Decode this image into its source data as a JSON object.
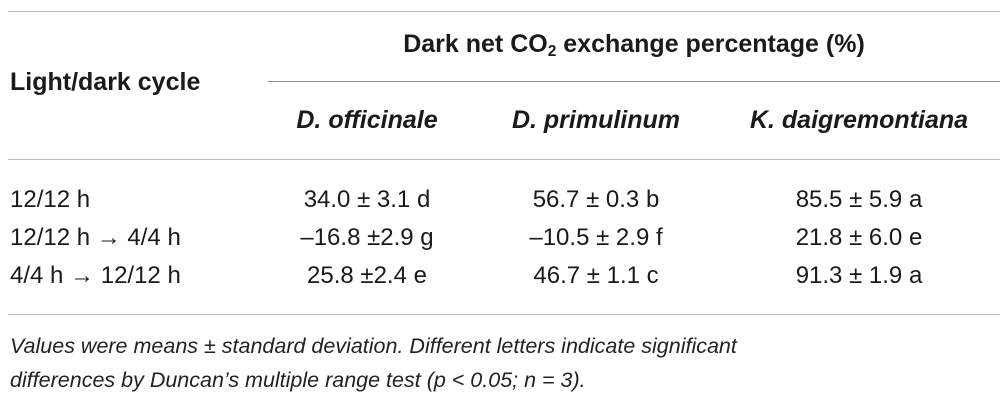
{
  "table": {
    "row_header": "Light/dark cycle",
    "group_header_prefix": "Dark net CO",
    "group_header_sub": "2",
    "group_header_suffix": " exchange percentage (%)",
    "columns": [
      "D. officinale",
      "D. primulinum",
      "K. daigremontiana"
    ],
    "rows": [
      {
        "cycle": "12/12 h",
        "values": [
          "34.0 ± 3.1 d",
          "56.7 ± 0.3 b",
          "85.5 ± 5.9 a"
        ]
      },
      {
        "cycle": "12/12 h → 4/4 h",
        "values": [
          "–16.8 ±2.9 g",
          "–10.5 ± 2.9 f",
          "21.8 ± 6.0 e"
        ]
      },
      {
        "cycle": "4/4 h → 12/12 h",
        "values": [
          "25.8 ±2.4 e",
          "46.7 ± 1.1 c",
          "91.3 ± 1.9 a"
        ]
      }
    ]
  },
  "footnote": {
    "line1": "Values were means ± standard deviation. Different letters indicate significant",
    "line2": "differences by Duncan’s multiple range test (p < 0.05; n = 3)."
  }
}
